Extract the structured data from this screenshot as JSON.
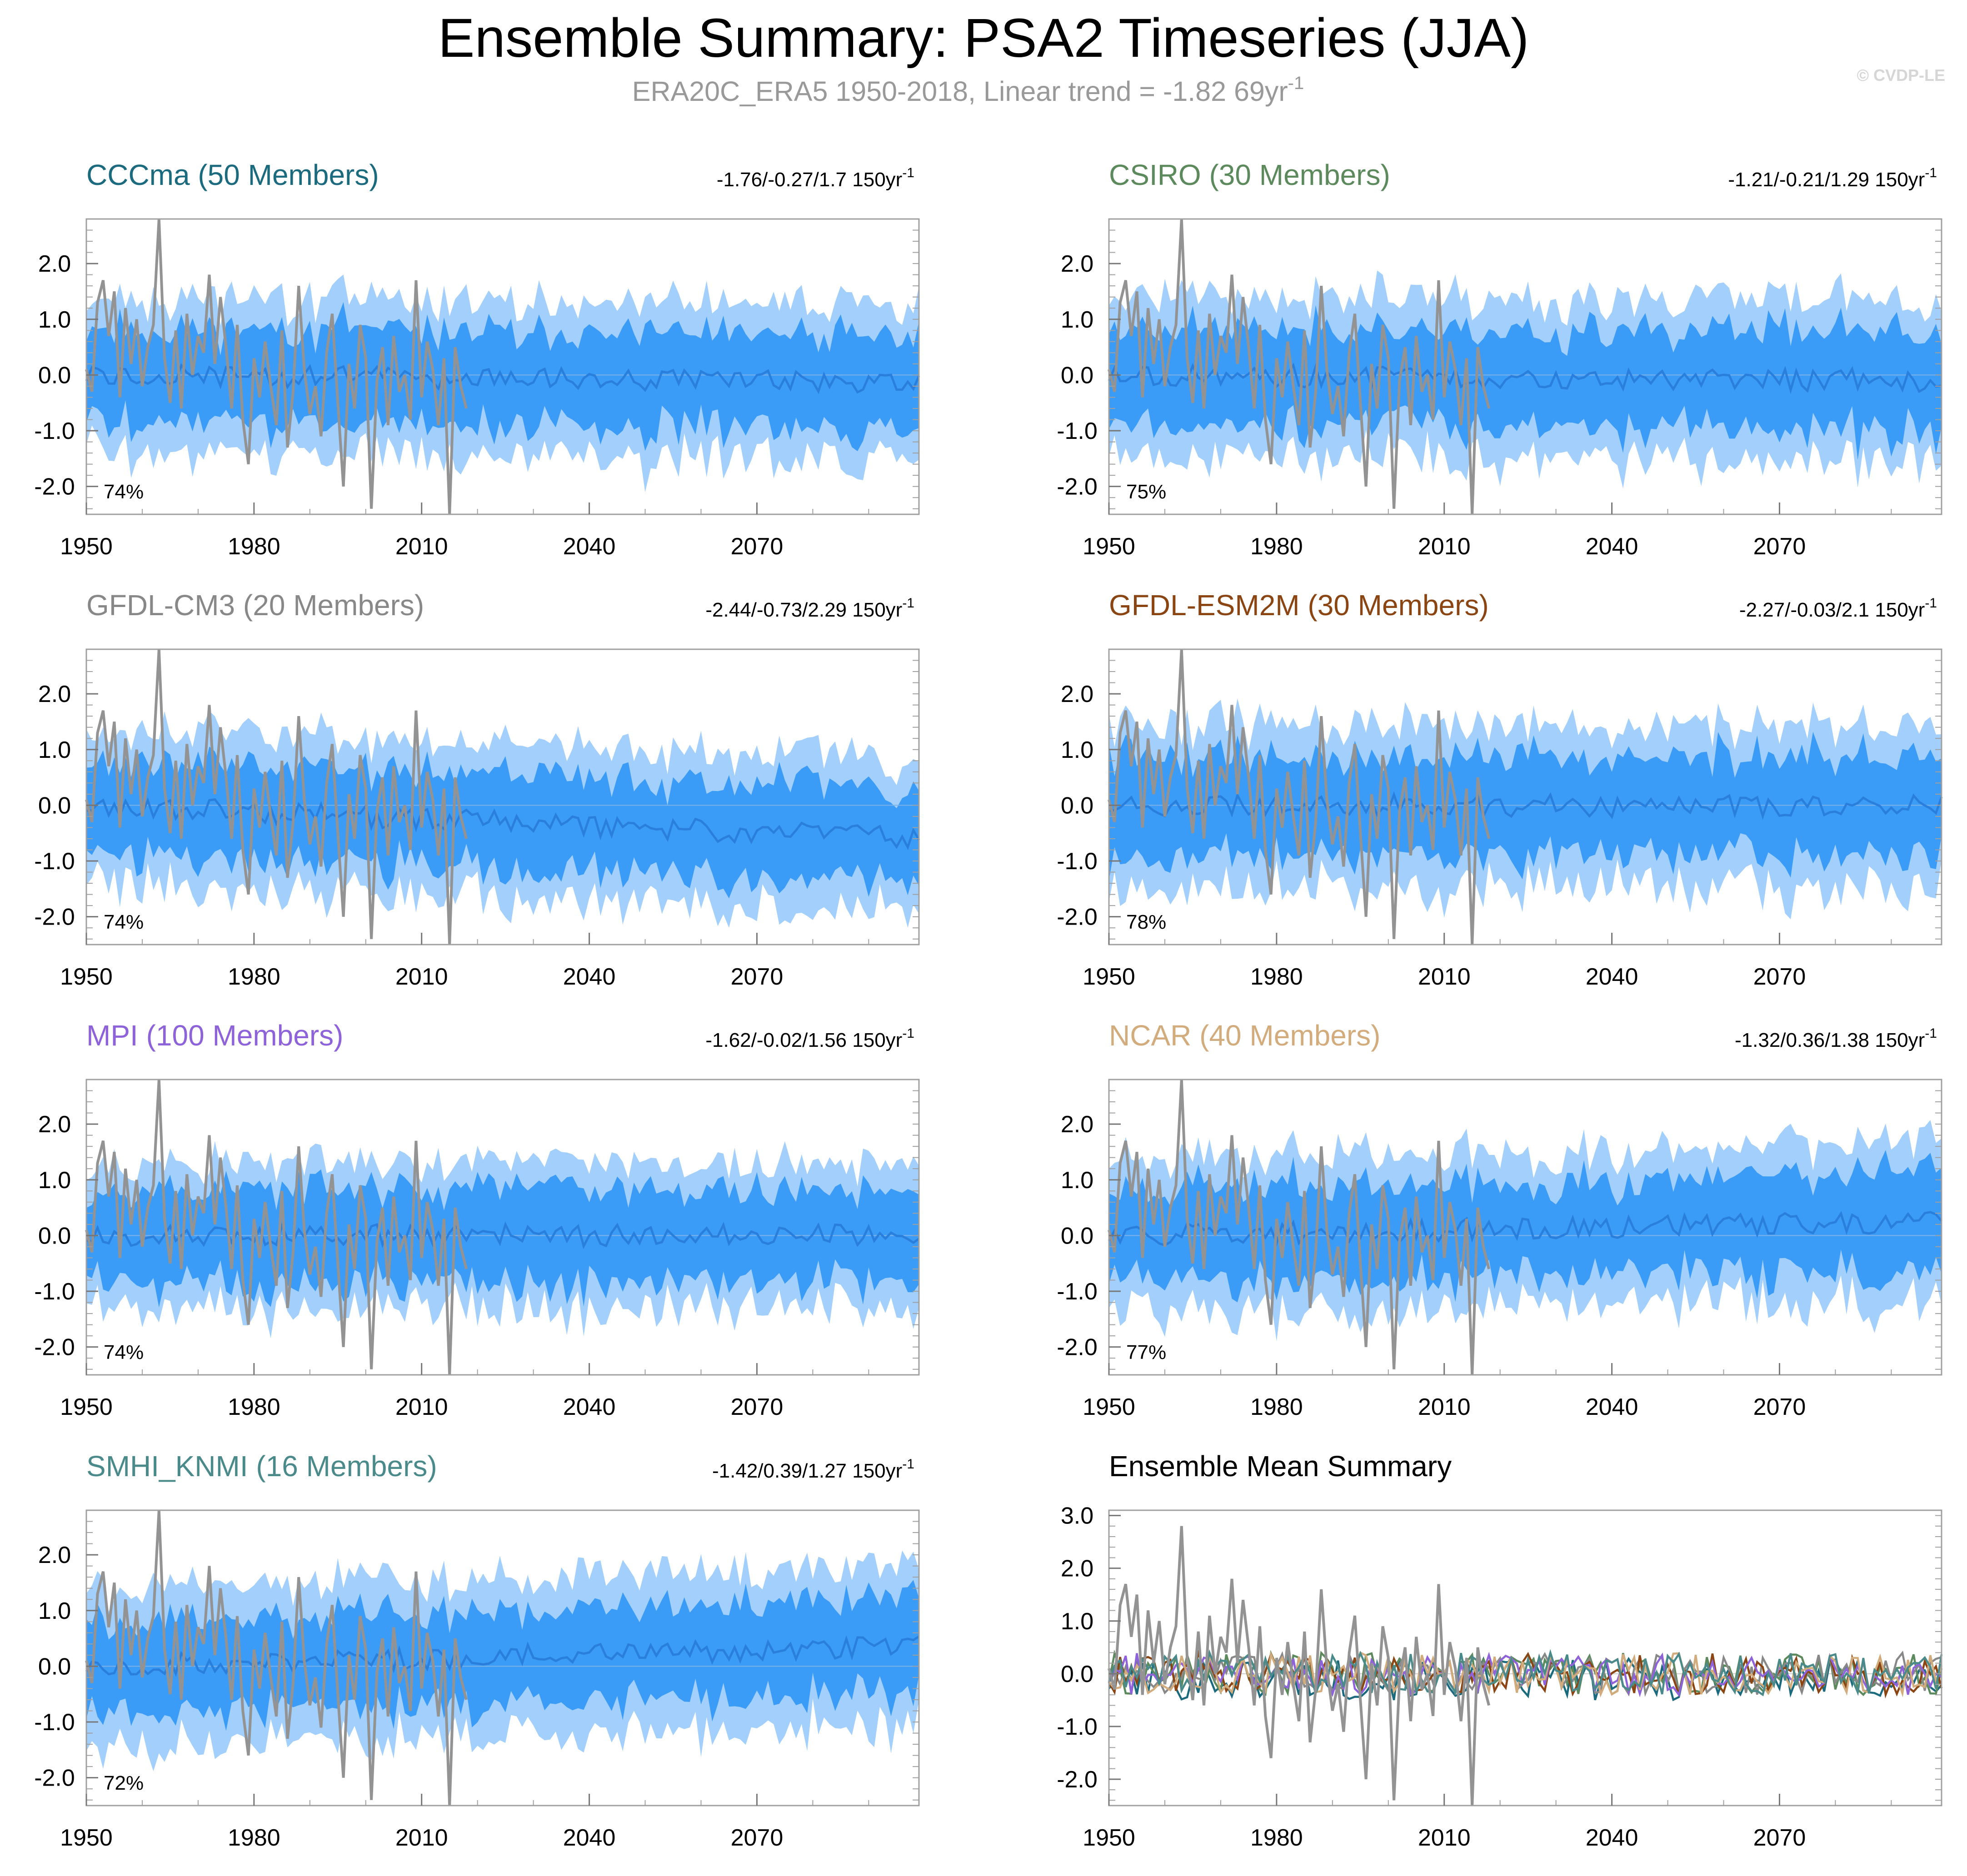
{
  "header": {
    "title": "Ensemble Summary: PSA2 Timeseries (JJA)",
    "subtitle_main": "ERA20C_ERA5 1950-2018, Linear trend = -1.82 69yr",
    "subtitle_sup": "-1",
    "credit": "© CVDP-LE"
  },
  "colors": {
    "outer_band": "#a2cffc",
    "inner_band": "#3b9cf8",
    "ens_mean_line": "#2a7fdc",
    "obs_line": "#939393",
    "frame": "#a0a0a0"
  },
  "chart_data": [
    {
      "id": "cccma",
      "type": "area",
      "title": "CCCma (50 Members)",
      "title_color": "#1b6a7e",
      "trend_text": "-1.76/-0.27/1.7 150yr",
      "trend_sup": "-1",
      "percent_label": "74%",
      "seed": 11,
      "spread": 1.35,
      "inner_ratio": 0.62,
      "trend_end": -0.15,
      "xlim": [
        1950,
        2099
      ],
      "ylim": [
        -2.5,
        2.8
      ],
      "xticks": [
        1950,
        1980,
        2010,
        2040,
        2070
      ],
      "yticks": [
        -2.0,
        -1.0,
        0.0,
        1.0,
        2.0
      ],
      "ytick_labels": [
        "-2.0",
        "-1.0",
        "0.0",
        "1.0",
        "2.0"
      ],
      "xlabel": "",
      "ylabel": ""
    },
    {
      "id": "csiro",
      "type": "area",
      "title": "CSIRO (30 Members)",
      "title_color": "#5c8a5c",
      "trend_text": "-1.21/-0.21/1.29 150yr",
      "trend_sup": "-1",
      "percent_label": "75%",
      "seed": 23,
      "spread": 1.4,
      "inner_ratio": 0.62,
      "trend_end": -0.1,
      "xlim": [
        1950,
        2099
      ],
      "ylim": [
        -2.5,
        2.8
      ],
      "xticks": [
        1950,
        1980,
        2010,
        2040,
        2070
      ],
      "yticks": [
        -2.0,
        -1.0,
        0.0,
        1.0,
        2.0
      ],
      "ytick_labels": [
        "-2.0",
        "-1.0",
        "0.0",
        "1.0",
        "2.0"
      ],
      "xlabel": "",
      "ylabel": ""
    },
    {
      "id": "gfdl-cm3",
      "type": "area",
      "title": "GFDL-CM3 (20 Members)",
      "title_color": "#888888",
      "trend_text": "-2.44/-0.73/2.29 150yr",
      "trend_sup": "-1",
      "percent_label": "74%",
      "seed": 37,
      "spread": 1.35,
      "inner_ratio": 0.62,
      "trend_end": -0.6,
      "xlim": [
        1950,
        2099
      ],
      "ylim": [
        -2.5,
        2.8
      ],
      "xticks": [
        1950,
        1980,
        2010,
        2040,
        2070
      ],
      "yticks": [
        -2.0,
        -1.0,
        0.0,
        1.0,
        2.0
      ],
      "ytick_labels": [
        "-2.0",
        "-1.0",
        "0.0",
        "1.0",
        "2.0"
      ],
      "xlabel": "",
      "ylabel": ""
    },
    {
      "id": "gfdl-esm2m",
      "type": "area",
      "title": "GFDL-ESM2M (30 Members)",
      "title_color": "#8b4513",
      "trend_text": "-2.27/-0.03/2.1 150yr",
      "trend_sup": "-1",
      "percent_label": "78%",
      "seed": 41,
      "spread": 1.4,
      "inner_ratio": 0.62,
      "trend_end": -0.02,
      "xlim": [
        1950,
        2099
      ],
      "ylim": [
        -2.5,
        2.8
      ],
      "xticks": [
        1950,
        1980,
        2010,
        2040,
        2070
      ],
      "yticks": [
        -2.0,
        -1.0,
        0.0,
        1.0,
        2.0
      ],
      "ytick_labels": [
        "-2.0",
        "-1.0",
        "0.0",
        "1.0",
        "2.0"
      ],
      "xlabel": "",
      "ylabel": ""
    },
    {
      "id": "mpi",
      "type": "area",
      "title": "MPI (100 Members)",
      "title_color": "#8e62d9",
      "trend_text": "-1.62/-0.02/1.56 150yr",
      "trend_sup": "-1",
      "percent_label": "74%",
      "seed": 53,
      "spread": 1.3,
      "inner_ratio": 0.65,
      "trend_end": 0.0,
      "xlim": [
        1950,
        2099
      ],
      "ylim": [
        -2.5,
        2.8
      ],
      "xticks": [
        1950,
        1980,
        2010,
        2040,
        2070
      ],
      "yticks": [
        -2.0,
        -1.0,
        0.0,
        1.0,
        2.0
      ],
      "ytick_labels": [
        "-2.0",
        "-1.0",
        "0.0",
        "1.0",
        "2.0"
      ],
      "xlabel": "",
      "ylabel": ""
    },
    {
      "id": "ncar",
      "type": "area",
      "title": "NCAR (40 Members)",
      "title_color": "#d2ac7c",
      "trend_text": "-1.32/0.36/1.38 150yr",
      "trend_sup": "-1",
      "percent_label": "77%",
      "seed": 67,
      "spread": 1.35,
      "inner_ratio": 0.63,
      "trend_end": 0.25,
      "xlim": [
        1950,
        2099
      ],
      "ylim": [
        -2.5,
        2.8
      ],
      "xticks": [
        1950,
        1980,
        2010,
        2040,
        2070
      ],
      "yticks": [
        -2.0,
        -1.0,
        0.0,
        1.0,
        2.0
      ],
      "ytick_labels": [
        "-2.0",
        "-1.0",
        "0.0",
        "1.0",
        "2.0"
      ],
      "xlabel": "",
      "ylabel": ""
    },
    {
      "id": "smhi-knmi",
      "type": "area",
      "title": "SMHI_KNMI (16 Members)",
      "title_color": "#4a8a8a",
      "trend_text": "-1.42/0.39/1.27 150yr",
      "trend_sup": "-1",
      "percent_label": "72%",
      "seed": 79,
      "spread": 1.4,
      "inner_ratio": 0.6,
      "trend_end": 0.35,
      "xlim": [
        1950,
        2099
      ],
      "ylim": [
        -2.5,
        2.8
      ],
      "xticks": [
        1950,
        1980,
        2010,
        2040,
        2070
      ],
      "yticks": [
        -2.0,
        -1.0,
        0.0,
        1.0,
        2.0
      ],
      "ytick_labels": [
        "-2.0",
        "-1.0",
        "0.0",
        "1.0",
        "2.0"
      ],
      "xlabel": "",
      "ylabel": ""
    },
    {
      "id": "ensemble-mean-summary",
      "type": "line",
      "title": "Ensemble Mean Summary",
      "title_color": "#000000",
      "trend_text": "",
      "trend_sup": "",
      "percent_label": "",
      "series_colors": [
        "#1b6a7e",
        "#5c8a5c",
        "#888888",
        "#8b4513",
        "#8e62d9",
        "#d2ac7c",
        "#4a8a8a"
      ],
      "xlim": [
        1950,
        2099
      ],
      "ylim": [
        -2.5,
        3.1
      ],
      "xticks": [
        1950,
        1980,
        2010,
        2040,
        2070
      ],
      "yticks": [
        -2.0,
        -1.0,
        0.0,
        1.0,
        2.0,
        3.0
      ],
      "ytick_labels": [
        "-2.0",
        "-1.0",
        "0.0",
        "1.0",
        "2.0",
        "3.0"
      ],
      "xlabel": "",
      "ylabel": ""
    }
  ],
  "observations": {
    "name": "ERA20C_ERA5",
    "years_start": 1950,
    "years_end": 2018,
    "values": [
      0.1,
      -0.3,
      1.3,
      1.7,
      0.7,
      1.5,
      -0.4,
      1.2,
      0.2,
      1.0,
      -0.2,
      0.5,
      0.9,
      2.8,
      0.3,
      -0.5,
      0.8,
      -0.6,
      1.1,
      0.0,
      0.7,
      0.4,
      1.8,
      0.2,
      1.4,
      0.5,
      -0.6,
      0.9,
      -0.8,
      -1.6,
      0.3,
      -0.4,
      0.6,
      -0.2,
      -0.9,
      0.8,
      -1.3,
      -0.3,
      1.6,
      0.1,
      -0.7,
      -0.2,
      -1.1,
      0.4,
      1.1,
      -0.5,
      -2.0,
      0.2,
      -0.6,
      0.9,
      0.3,
      -2.4,
      -0.1,
      0.5,
      -0.9,
      0.7,
      -0.3,
      0.0,
      -0.8,
      1.7,
      -0.4,
      0.6,
      0.1,
      -0.9,
      0.3,
      -2.5,
      0.5,
      -0.2,
      -0.6
    ]
  }
}
